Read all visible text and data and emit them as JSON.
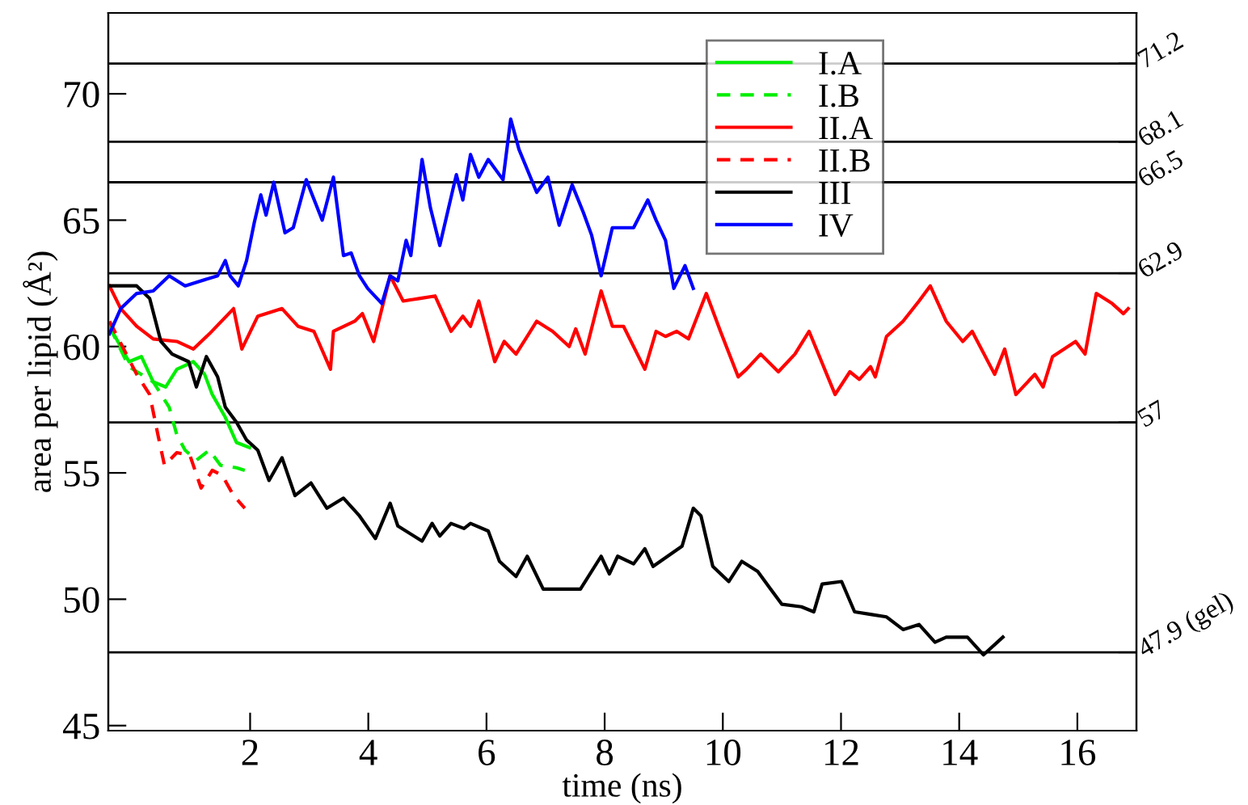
{
  "chart_data": {
    "type": "line",
    "xlabel": "time (ns)",
    "ylabel": "area per lipid (Å²)",
    "xlim": [
      -0.4,
      17
    ],
    "xticks": [
      2,
      4,
      6,
      8,
      10,
      12,
      14,
      16
    ],
    "ylim": [
      44.8,
      73.2
    ],
    "yticks": [
      45,
      50,
      55,
      60,
      65,
      70
    ],
    "y2lim": [
      44.8,
      73.2
    ],
    "y2ticks": [
      71.2,
      68.1,
      66.5,
      62.9,
      57,
      {
        "value": 47.9,
        "label": "47.9 (gel)"
      }
    ],
    "grid": false,
    "legend": "top right",
    "marker": "none",
    "ref_lines": [
      {
        "axis": "y",
        "value": 71.2,
        "color": "#000000"
      },
      {
        "axis": "y",
        "value": 68.1,
        "color": "#000000"
      },
      {
        "axis": "y",
        "value": 66.5,
        "color": "#000000"
      },
      {
        "axis": "y",
        "value": 62.9,
        "color": "#000000"
      },
      {
        "axis": "y",
        "value": 57,
        "color": "#000000"
      },
      {
        "axis": "y",
        "value": 47.9,
        "color": "#000000"
      }
    ],
    "series": [
      {
        "name": "I.A",
        "color": "#00ee00",
        "line_style": "solid",
        "x": [
          -0.38,
          -0.05,
          0.16,
          0.36,
          0.57,
          0.76,
          1.04,
          1.23,
          1.36,
          1.58,
          1.77,
          1.99
        ],
        "values": [
          60.8,
          59.4,
          59.6,
          58.6,
          58.4,
          59.1,
          59.4,
          58.9,
          58.1,
          57.2,
          56.2,
          56.0
        ]
      },
      {
        "name": "I.B",
        "color": "#00ee00",
        "line_style": "dashed",
        "x": [
          -0.38,
          -0.05,
          0.36,
          0.63,
          0.76,
          0.9,
          1.09,
          1.31,
          1.5,
          1.77,
          1.91
        ],
        "values": [
          60.8,
          59.2,
          58.6,
          57.6,
          56.5,
          55.9,
          55.5,
          55.9,
          55.3,
          55.2,
          55.1
        ]
      },
      {
        "name": "II.A",
        "color": "#ff0000",
        "line_style": "solid",
        "x": [
          -0.38,
          -0.19,
          0.08,
          0.36,
          0.76,
          1.04,
          1.31,
          1.72,
          1.86,
          2.13,
          2.54,
          2.81,
          3.08,
          3.36,
          3.41,
          3.77,
          3.9,
          4.09,
          4.37,
          4.59,
          4.86,
          5.13,
          5.4,
          5.6,
          5.73,
          5.87,
          6.14,
          6.3,
          6.5,
          6.69,
          6.85,
          7.12,
          7.4,
          7.51,
          7.67,
          7.94,
          8.13,
          8.32,
          8.68,
          8.87,
          9.03,
          9.22,
          9.42,
          9.72,
          9.96,
          10.26,
          10.4,
          10.64,
          10.94,
          11.22,
          11.46,
          11.9,
          12.15,
          12.31,
          12.5,
          12.58,
          12.77,
          13.05,
          13.32,
          13.51,
          13.78,
          14.06,
          14.22,
          14.6,
          14.77,
          14.96,
          15.28,
          15.42,
          15.58,
          15.97,
          16.13,
          16.32,
          16.59,
          16.78,
          16.86
        ],
        "values": [
          62.4,
          61.5,
          60.8,
          60.3,
          60.2,
          59.9,
          60.5,
          61.5,
          59.9,
          61.2,
          61.5,
          60.8,
          60.6,
          59.1,
          60.6,
          61.0,
          61.3,
          60.2,
          62.8,
          61.8,
          61.9,
          62.0,
          60.6,
          61.2,
          60.8,
          61.8,
          59.4,
          60.2,
          59.7,
          60.4,
          61.0,
          60.6,
          60.0,
          60.7,
          59.7,
          62.2,
          60.8,
          60.8,
          59.1,
          60.6,
          60.4,
          60.6,
          60.3,
          62.1,
          60.6,
          58.8,
          59.1,
          59.7,
          59.0,
          59.7,
          60.6,
          58.1,
          59.0,
          58.7,
          59.2,
          58.8,
          60.4,
          61.0,
          61.8,
          62.4,
          61.0,
          60.2,
          60.6,
          58.9,
          59.9,
          58.1,
          58.9,
          58.4,
          59.6,
          60.2,
          59.7,
          62.1,
          61.7,
          61.3,
          61.5
        ]
      },
      {
        "name": "II.B",
        "color": "#ff0000",
        "line_style": "dashed",
        "x": [
          -0.38,
          0.08,
          0.3,
          0.44,
          0.55,
          0.76,
          0.98,
          1.17,
          1.36,
          1.53,
          1.72,
          1.91
        ],
        "values": [
          61.0,
          58.9,
          58.1,
          56.5,
          55.3,
          55.8,
          55.7,
          54.4,
          55.1,
          54.9,
          54.1,
          53.6
        ]
      },
      {
        "name": "III",
        "color": "#000000",
        "line_style": "solid",
        "x": [
          -0.38,
          0.08,
          0.3,
          0.49,
          0.68,
          0.96,
          1.09,
          1.26,
          1.45,
          1.58,
          1.77,
          1.94,
          2.13,
          2.32,
          2.54,
          2.76,
          3.03,
          3.3,
          3.58,
          3.85,
          4.12,
          4.37,
          4.5,
          4.91,
          5.08,
          5.21,
          5.4,
          5.62,
          5.73,
          6.03,
          6.22,
          6.5,
          6.69,
          6.96,
          7.59,
          7.94,
          8.08,
          8.22,
          8.49,
          8.68,
          8.82,
          9.31,
          9.5,
          9.63,
          9.83,
          10.1,
          10.32,
          10.59,
          10.81,
          11.0,
          11.33,
          11.54,
          11.68,
          12.01,
          12.23,
          12.5,
          12.77,
          13.05,
          13.32,
          13.59,
          13.78,
          14.14,
          14.41,
          14.74
        ],
        "values": [
          62.4,
          62.4,
          61.9,
          60.2,
          59.7,
          59.4,
          58.4,
          59.6,
          58.8,
          57.6,
          57.0,
          56.3,
          55.9,
          54.7,
          55.6,
          54.1,
          54.6,
          53.6,
          54.0,
          53.3,
          52.4,
          53.8,
          52.9,
          52.3,
          53.0,
          52.5,
          53.0,
          52.8,
          53.0,
          52.7,
          51.5,
          50.9,
          51.7,
          50.4,
          50.4,
          51.7,
          51.0,
          51.7,
          51.4,
          52.0,
          51.3,
          52.1,
          53.6,
          53.3,
          51.3,
          50.7,
          51.5,
          51.1,
          50.4,
          49.8,
          49.7,
          49.5,
          50.6,
          50.7,
          49.5,
          49.4,
          49.3,
          48.8,
          49.0,
          48.3,
          48.5,
          48.5,
          47.8,
          48.5
        ]
      },
      {
        "name": "IV",
        "color": "#0000ff",
        "line_style": "solid",
        "x": [
          -0.38,
          -0.19,
          0.08,
          0.36,
          0.63,
          0.9,
          1.17,
          1.45,
          1.58,
          1.66,
          1.8,
          1.94,
          2.07,
          2.18,
          2.27,
          2.4,
          2.59,
          2.73,
          2.95,
          3.22,
          3.41,
          3.58,
          3.71,
          3.85,
          3.99,
          4.23,
          4.37,
          4.5,
          4.64,
          4.72,
          4.91,
          5.05,
          5.21,
          5.49,
          5.6,
          5.73,
          5.87,
          6.03,
          6.28,
          6.41,
          6.55,
          6.85,
          7.04,
          7.23,
          7.45,
          7.64,
          7.78,
          7.94,
          8.13,
          8.49,
          8.73,
          8.87,
          9.03,
          9.17,
          9.36,
          9.5
        ],
        "values": [
          60.5,
          61.5,
          62.1,
          62.2,
          62.8,
          62.4,
          62.6,
          62.8,
          63.4,
          62.8,
          62.4,
          63.4,
          64.9,
          66.0,
          65.2,
          66.5,
          64.5,
          64.7,
          66.6,
          65.0,
          66.7,
          63.6,
          63.7,
          62.8,
          62.3,
          61.7,
          62.8,
          62.6,
          64.2,
          63.6,
          67.4,
          65.5,
          64.0,
          66.8,
          65.8,
          67.6,
          66.7,
          67.4,
          66.6,
          69.0,
          67.8,
          66.1,
          66.7,
          64.8,
          66.4,
          65.3,
          64.4,
          62.8,
          64.7,
          64.7,
          65.8,
          65.0,
          64.2,
          62.3,
          63.2,
          62.3
        ]
      }
    ]
  }
}
